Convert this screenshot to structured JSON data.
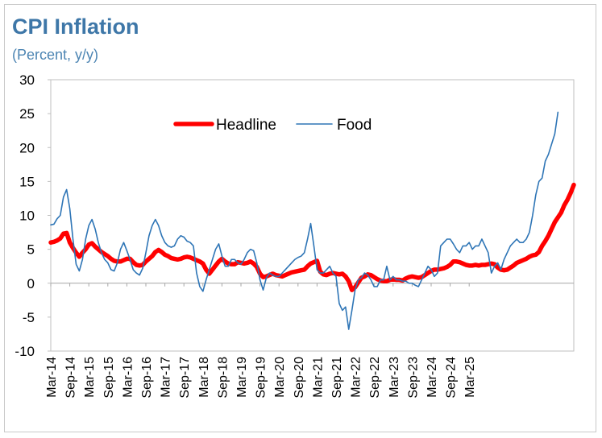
{
  "chart_data": {
    "type": "line",
    "title": "CPI Inflation",
    "subtitle": "(Percent, y/y)",
    "xlabel": "",
    "ylabel": "",
    "ylim": [
      -10,
      30
    ],
    "yticks": [
      -10,
      -5,
      0,
      5,
      10,
      15,
      20,
      25,
      30
    ],
    "x_ticks": [
      "Mar-14",
      "Sep-14",
      "Mar-15",
      "Sep-15",
      "Mar-16",
      "Sep-16",
      "Mar-17",
      "Sep-17",
      "Mar-18",
      "Sep-18",
      "Mar-19",
      "Sep-19",
      "Mar-20",
      "Sep-20",
      "Mar-21",
      "Sep-21",
      "Mar-22",
      "Sep-22",
      "Mar-23",
      "Sep-23",
      "Mar-24",
      "Sep-24",
      "Mar-25"
    ],
    "grid": false,
    "legend": "upper-left-center",
    "x_start": "Mar-14",
    "x_frequency": "monthly",
    "series": [
      {
        "name": "Headline",
        "color": "#ff0000",
        "values": [
          6.0,
          6.1,
          6.3,
          6.6,
          7.3,
          7.4,
          6.0,
          5.2,
          4.5,
          3.9,
          4.5,
          5.0,
          5.7,
          5.9,
          5.4,
          5.0,
          4.6,
          4.3,
          4.0,
          3.6,
          3.3,
          3.2,
          3.2,
          3.4,
          3.6,
          3.6,
          3.1,
          2.7,
          2.6,
          2.7,
          3.2,
          3.6,
          4.0,
          4.6,
          4.9,
          4.6,
          4.2,
          4.0,
          3.7,
          3.6,
          3.5,
          3.6,
          3.8,
          3.9,
          3.8,
          3.6,
          3.4,
          3.2,
          2.9,
          2.0,
          1.4,
          2.0,
          2.6,
          3.2,
          3.6,
          3.2,
          2.9,
          2.8,
          2.8,
          3.1,
          3.0,
          2.9,
          3.0,
          3.2,
          2.9,
          2.4,
          1.4,
          0.9,
          1.0,
          1.2,
          1.4,
          1.2,
          1.1,
          1.0,
          1.2,
          1.4,
          1.6,
          1.7,
          1.8,
          1.9,
          2.0,
          2.5,
          2.9,
          3.1,
          3.3,
          1.7,
          1.3,
          1.2,
          1.4,
          1.5,
          1.4,
          1.3,
          1.4,
          1.0,
          0.3,
          -1.0,
          -0.6,
          0.1,
          0.8,
          1.0,
          1.3,
          1.2,
          0.9,
          0.6,
          0.4,
          0.3,
          0.3,
          0.5,
          0.6,
          0.5,
          0.5,
          0.4,
          0.7,
          0.9,
          1.0,
          0.9,
          0.8,
          0.9,
          1.2,
          1.5,
          1.8,
          2.0,
          2.0,
          2.1,
          2.2,
          2.4,
          2.7,
          3.2,
          3.2,
          3.1,
          2.9,
          2.7,
          2.6,
          2.6,
          2.7,
          2.6,
          2.7,
          2.7,
          2.8,
          2.9,
          2.8,
          2.3,
          2.0,
          1.9,
          2.0,
          2.3,
          2.6,
          3.0,
          3.2,
          3.4,
          3.6,
          3.9,
          4.1,
          4.2,
          4.6,
          5.5,
          6.2,
          7.0,
          8.0,
          9.0,
          9.7,
          10.4,
          11.5,
          12.3,
          13.3,
          14.5
        ]
      },
      {
        "name": "Food",
        "color": "#2e75b6",
        "values": [
          8.6,
          8.7,
          9.5,
          10.0,
          12.7,
          13.8,
          11.0,
          6.5,
          2.8,
          1.8,
          3.5,
          6.5,
          8.5,
          9.4,
          8.0,
          6.0,
          4.5,
          3.5,
          3.0,
          2.0,
          1.8,
          3.0,
          5.0,
          6.0,
          4.8,
          3.5,
          2.0,
          1.5,
          1.2,
          2.2,
          4.5,
          7.0,
          8.5,
          9.4,
          8.5,
          7.0,
          6.0,
          5.5,
          5.3,
          5.5,
          6.5,
          7.0,
          6.8,
          6.2,
          6.0,
          5.5,
          1.5,
          -0.5,
          -1.2,
          0.5,
          2.0,
          3.5,
          5.0,
          5.8,
          4.0,
          2.5,
          2.5,
          3.5,
          3.5,
          3.0,
          2.8,
          3.5,
          4.5,
          5.0,
          4.8,
          3.0,
          0.5,
          -1.0,
          0.8,
          1.5,
          1.2,
          1.0,
          1.0,
          1.5,
          2.0,
          2.5,
          3.0,
          3.5,
          3.8,
          4.0,
          4.5,
          6.5,
          8.8,
          5.5,
          2.0,
          1.5,
          1.5,
          2.0,
          2.5,
          1.5,
          1.0,
          -3.0,
          -4.0,
          -3.5,
          -6.8,
          -4.0,
          -1.0,
          0.5,
          0.8,
          1.5,
          1.2,
          0.5,
          -0.5,
          -0.5,
          0.5,
          0.5,
          2.5,
          0.5,
          1.0,
          0.5,
          0.5,
          0.3,
          0.3,
          0.0,
          0.0,
          -0.3,
          -0.5,
          0.5,
          1.5,
          2.5,
          2.0,
          1.0,
          1.5,
          5.5,
          6.0,
          6.5,
          6.5,
          5.8,
          5.0,
          4.5,
          5.5,
          5.5,
          6.0,
          5.0,
          5.5,
          5.5,
          6.5,
          5.5,
          4.5,
          1.5,
          2.5,
          3.0,
          2.0,
          3.5,
          4.5,
          5.5,
          6.0,
          6.5,
          6.0,
          6.0,
          6.5,
          7.5,
          10.0,
          13.0,
          15.0,
          15.5,
          18.0,
          19.0,
          20.5,
          22.0,
          25.2
        ]
      }
    ]
  }
}
